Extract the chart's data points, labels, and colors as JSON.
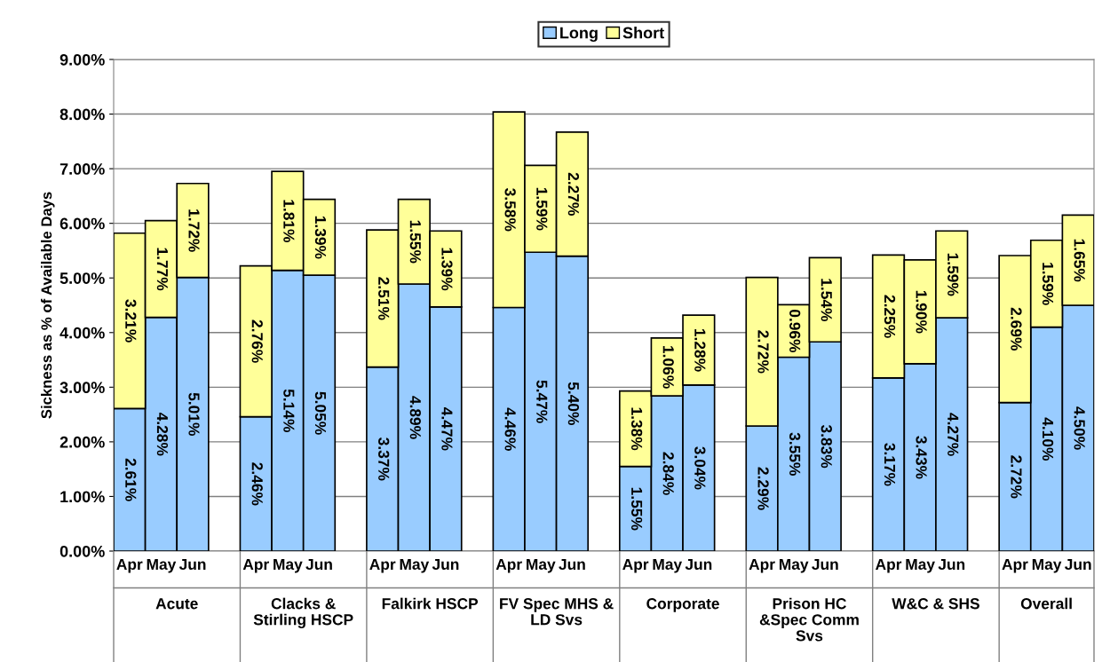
{
  "chart_data": {
    "type": "bar",
    "stacked": true,
    "categories": [
      "Apr",
      "May",
      "Jun",
      null,
      "Apr",
      "May",
      "Jun",
      null,
      "Apr",
      "May",
      "Jun",
      null,
      "Apr",
      "May",
      "Jun",
      null,
      "Apr",
      "May",
      "Jun",
      null,
      "Apr",
      "May",
      "Jun",
      null,
      "Apr",
      "May",
      "Jun",
      null,
      "Apr",
      "May",
      "Jun"
    ],
    "series": [
      {
        "name": "Long",
        "color": "#99ccff",
        "values": [
          2.61,
          4.28,
          5.01,
          null,
          2.46,
          5.14,
          5.05,
          null,
          3.37,
          4.89,
          4.47,
          null,
          4.46,
          5.47,
          5.4,
          null,
          1.55,
          2.84,
          3.04,
          null,
          2.29,
          3.55,
          3.83,
          null,
          3.17,
          3.43,
          4.27,
          null,
          2.72,
          4.1,
          4.5
        ],
        "value_labels": [
          "2.61%",
          "4.28%",
          "5.01%",
          null,
          "2.46%",
          "5.14%",
          "5.05%",
          null,
          "3.37%",
          "4.89%",
          "4.47%",
          null,
          "4.46%",
          "5.47%",
          "5.40%",
          null,
          "1.55%",
          "2.84%",
          "3.04%",
          null,
          "2.29%",
          "3.55%",
          "3.83%",
          null,
          "3.17%",
          "3.43%",
          "4.27%",
          null,
          "2.72%",
          "4.10%",
          "4.50%"
        ]
      },
      {
        "name": "Short",
        "color": "#ffff99",
        "values": [
          3.21,
          1.77,
          1.72,
          null,
          2.76,
          1.81,
          1.39,
          null,
          2.51,
          1.55,
          1.39,
          null,
          3.58,
          1.59,
          2.27,
          null,
          1.38,
          1.06,
          1.28,
          null,
          2.72,
          0.96,
          1.54,
          null,
          2.25,
          1.9,
          1.59,
          null,
          2.69,
          1.59,
          1.65
        ],
        "value_labels": [
          "3.21%",
          "1.77%",
          "1.72%",
          null,
          "2.76%",
          "1.81%",
          "1.39%",
          null,
          "2.51%",
          "1.55%",
          "1.39%",
          null,
          "3.58%",
          "1.59%",
          "2.27%",
          null,
          "1.38%",
          "1.06%",
          "1.28%",
          null,
          "2.72%",
          "0.96%",
          "1.54%",
          null,
          "2.25%",
          "1.90%",
          "1.59%",
          null,
          "2.69%",
          "1.59%",
          "1.65%"
        ]
      }
    ],
    "annotations": [
      "Acute",
      "Clacks & Stirling HSCP",
      "Falkirk HSCP",
      "FV Spec MHS & LD Svs",
      "Corporate",
      "Prison HC &Spec Comm Svs",
      "W&C & SHS",
      "Overall"
    ],
    "ylabel": "Sickness as % of Available Days",
    "ylim": [
      0,
      9
    ],
    "yticks": [
      {
        "value": 0,
        "label": "0.00%"
      },
      {
        "value": 1,
        "label": "1.00%"
      },
      {
        "value": 2,
        "label": "2.00%"
      },
      {
        "value": 3,
        "label": "3.00%"
      },
      {
        "value": 4,
        "label": "4.00%"
      },
      {
        "value": 5,
        "label": "5.00%"
      },
      {
        "value": 6,
        "label": "6.00%"
      },
      {
        "value": 7,
        "label": "7.00%"
      },
      {
        "value": 8,
        "label": "8.00%"
      },
      {
        "value": 9,
        "label": "9.00%"
      }
    ],
    "grid": "y",
    "legend": "top"
  }
}
